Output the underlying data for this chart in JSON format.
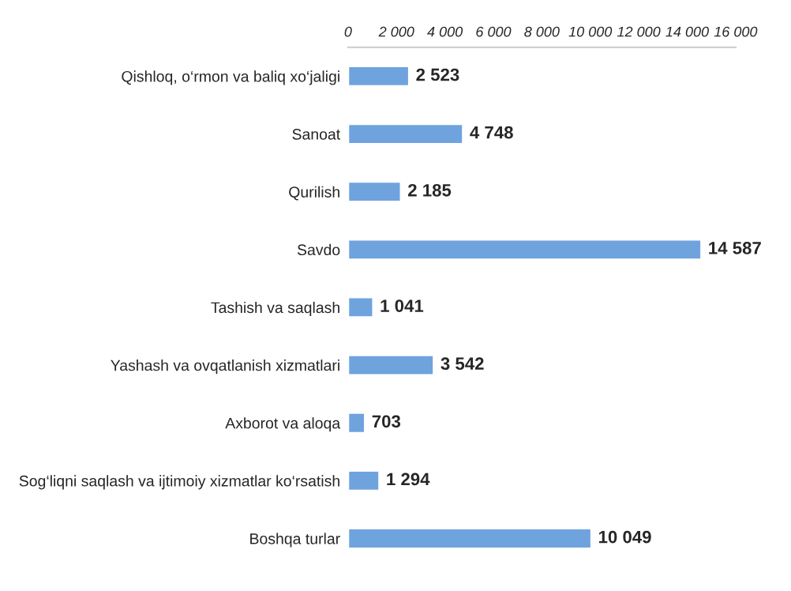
{
  "chart_data": {
    "type": "bar",
    "orientation": "horizontal",
    "categories": [
      "Qishloq, o‘rmon va baliq xo‘jaligi",
      "Sanoat",
      "Qurilish",
      "Savdo",
      "Tashish va saqlash",
      "Yashash va ovqatlanish xizmatlari",
      "Axborot va aloqa",
      "Sog‘liqni saqlash va ijtimoiy xizmatlar ko‘rsatish",
      "Boshqa turlar"
    ],
    "values": [
      2523,
      4748,
      2185,
      14587,
      1041,
      3542,
      703,
      1294,
      10049
    ],
    "value_labels": [
      "2 523",
      "4 748",
      "2 185",
      "14 587",
      "1 041",
      "3 542",
      "703",
      "1 294",
      "10 049"
    ],
    "color": "#6fa3de",
    "xlim": [
      0,
      16000
    ],
    "xticks": [
      0,
      {
        "value": 2000,
        "label": "2 000"
      },
      {
        "value": 4000,
        "label": "4 000"
      },
      {
        "value": 6000,
        "label": "6 000"
      },
      {
        "value": 8000,
        "label": "8 000"
      },
      {
        "value": 10000,
        "label": "10 000"
      },
      {
        "value": 12000,
        "label": "12 000"
      },
      {
        "value": 14000,
        "label": "14 000"
      },
      {
        "value": 16000,
        "label": "16 000"
      }
    ],
    "grid": false,
    "legend": false
  }
}
